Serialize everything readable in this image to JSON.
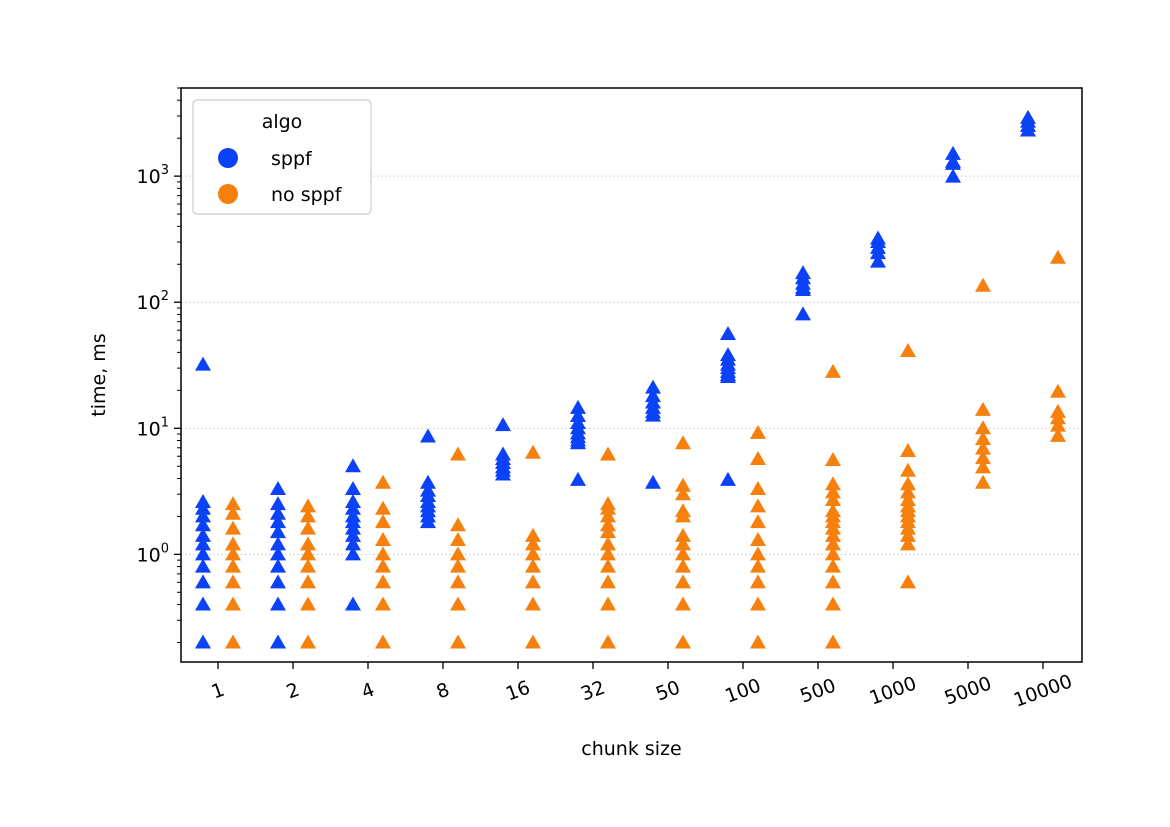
{
  "chart_data": {
    "type": "scatter",
    "title": "",
    "xlabel": "chunk size",
    "ylabel": "time, ms",
    "y_scale": "log",
    "ylim": [
      0.14,
      5000
    ],
    "x_categories": [
      "1",
      "2",
      "4",
      "8",
      "16",
      "32",
      "50",
      "100",
      "500",
      "1000",
      "5000",
      "10000"
    ],
    "y_tick_labels": [
      {
        "value": 1,
        "base": "10",
        "exp": "0"
      },
      {
        "value": 10,
        "base": "10",
        "exp": "1"
      },
      {
        "value": 100,
        "base": "10",
        "exp": "2"
      },
      {
        "value": 1000,
        "base": "10",
        "exp": "3"
      }
    ],
    "grid": "horizontal-dotted",
    "marker": "triangle",
    "legend": {
      "title": "algo",
      "location": "upper-left",
      "entries": [
        {
          "label": "sppf",
          "color": "#0b42f5"
        },
        {
          "label": "no sppf",
          "color": "#f5800e"
        }
      ]
    },
    "series": [
      {
        "name": "sppf",
        "color": "#0b42f5",
        "x_offset": -0.2,
        "points_by_category": [
          [
            0.2,
            0.4,
            0.6,
            0.8,
            1.0,
            1.2,
            1.4,
            1.7,
            2.0,
            2.3,
            2.6,
            32
          ],
          [
            0.2,
            0.4,
            0.6,
            0.8,
            1.0,
            1.2,
            1.5,
            1.8,
            2.1,
            2.5,
            3.3
          ],
          [
            0.4,
            1.0,
            1.2,
            1.4,
            1.6,
            1.8,
            2.0,
            2.3,
            2.6,
            3.3,
            5.0
          ],
          [
            1.8,
            2.0,
            2.2,
            2.4,
            2.6,
            2.9,
            3.2,
            3.7,
            8.6
          ],
          [
            4.3,
            4.6,
            4.9,
            5.3,
            5.7,
            6.2,
            10.6
          ],
          [
            3.9,
            7.6,
            8.0,
            8.5,
            9.1,
            10,
            11,
            12.5,
            14.5
          ],
          [
            3.7,
            12.6,
            13.4,
            14.5,
            16,
            18,
            21
          ],
          [
            3.9,
            25.5,
            26.5,
            28,
            30,
            32,
            35,
            38,
            56
          ],
          [
            80,
            125,
            130,
            140,
            155,
            170
          ],
          [
            210,
            245,
            270,
            300,
            320
          ],
          [
            990,
            1250,
            1300,
            1500
          ],
          [
            2300,
            2500,
            2700,
            2900
          ]
        ]
      },
      {
        "name": "no sppf",
        "color": "#f5800e",
        "x_offset": 0.2,
        "points_by_category": [
          [
            0.2,
            0.4,
            0.6,
            0.8,
            1.0,
            1.2,
            1.6,
            2.1,
            2.5
          ],
          [
            0.2,
            0.4,
            0.6,
            0.8,
            1.0,
            1.2,
            1.6,
            2.0,
            2.4
          ],
          [
            0.2,
            0.4,
            0.6,
            0.8,
            1.0,
            1.3,
            1.8,
            2.3,
            3.7
          ],
          [
            0.2,
            0.4,
            0.6,
            0.8,
            1.0,
            1.3,
            1.7,
            6.2
          ],
          [
            0.2,
            0.4,
            0.6,
            0.8,
            1.0,
            1.2,
            1.4,
            6.4
          ],
          [
            0.2,
            0.4,
            0.6,
            0.8,
            1.0,
            1.2,
            1.5,
            1.7,
            2.0,
            2.3,
            2.5,
            6.2
          ],
          [
            0.2,
            0.4,
            0.6,
            0.8,
            1.0,
            1.2,
            1.4,
            2.0,
            2.2,
            3.0,
            3.5,
            7.6
          ],
          [
            0.2,
            0.4,
            0.6,
            0.8,
            1.0,
            1.3,
            1.8,
            2.4,
            3.3,
            5.7,
            9.2
          ],
          [
            0.2,
            0.4,
            0.6,
            0.8,
            1.0,
            1.2,
            1.4,
            1.6,
            1.8,
            2.0,
            2.2,
            2.7,
            3.1,
            3.6,
            5.6,
            28
          ],
          [
            0.6,
            1.2,
            1.4,
            1.6,
            1.8,
            2.0,
            2.2,
            2.4,
            2.7,
            3.1,
            3.6,
            4.6,
            6.6,
            41
          ],
          [
            3.7,
            4.9,
            5.8,
            6.9,
            8.2,
            10,
            14,
            135
          ],
          [
            8.7,
            10.5,
            12,
            13.5,
            19.5,
            225
          ]
        ]
      }
    ]
  }
}
